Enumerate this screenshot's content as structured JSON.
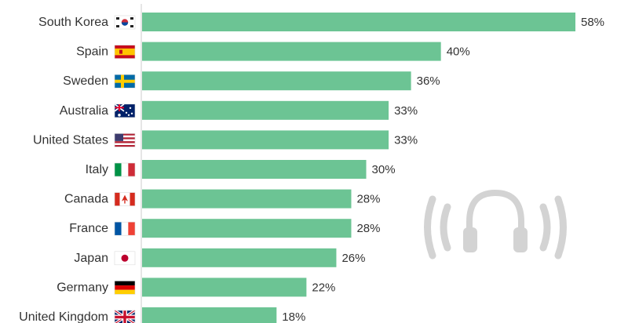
{
  "chart_data": {
    "type": "bar",
    "orientation": "horizontal",
    "categories": [
      "South Korea",
      "Spain",
      "Sweden",
      "Australia",
      "United States",
      "Italy",
      "Canada",
      "France",
      "Japan",
      "Germany",
      "United Kingdom"
    ],
    "values": [
      58,
      40,
      36,
      33,
      33,
      30,
      28,
      28,
      26,
      22,
      18
    ],
    "value_labels": [
      "58%",
      "40%",
      "36%",
      "33%",
      "33%",
      "30%",
      "28%",
      "28%",
      "26%",
      "22%",
      "18%"
    ],
    "flags": [
      "south-korea-flag-icon",
      "spain-flag-icon",
      "sweden-flag-icon",
      "australia-flag-icon",
      "united-states-flag-icon",
      "italy-flag-icon",
      "canada-flag-icon",
      "france-flag-icon",
      "japan-flag-icon",
      "germany-flag-icon",
      "united-kingdom-flag-icon"
    ],
    "xlim": [
      0,
      58
    ],
    "grid": false,
    "bar_color": "#6cc494",
    "decoration": "headphones-icon"
  }
}
